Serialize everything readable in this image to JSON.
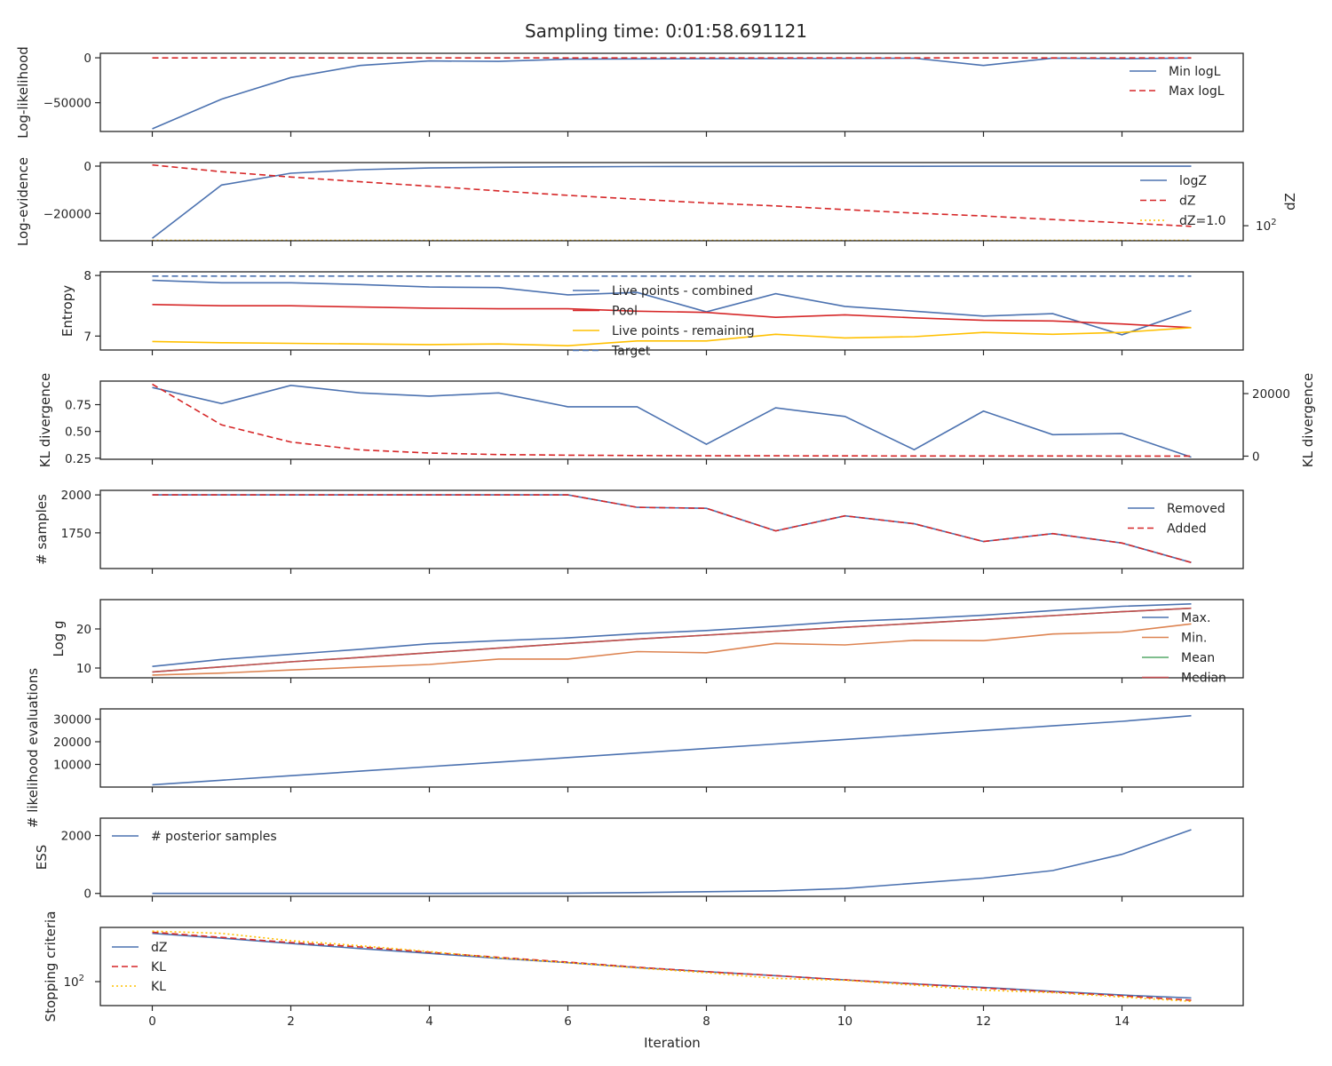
{
  "figure": {
    "title": "Sampling time: 0:01:58.691121",
    "xlabel": "Iteration",
    "xticks": [
      0,
      2,
      4,
      6,
      8,
      10,
      12,
      14
    ]
  },
  "colors": {
    "blue": "#4c72b0",
    "red": "#d62728",
    "yellow": "#ffc000",
    "orange": "#dd8452",
    "green": "#55a868",
    "darkred": "#c44e52",
    "axis": "#262626"
  },
  "chart_data": [
    {
      "type": "line",
      "ylabel": "Log-likelihood",
      "x": [
        0,
        1,
        2,
        3,
        4,
        5,
        6,
        7,
        8,
        9,
        10,
        11,
        12,
        13,
        14,
        15
      ],
      "ylim": [
        -82000,
        5000
      ],
      "yticks": [
        0,
        -50000
      ],
      "yticklabels": [
        "0",
        "−50000"
      ],
      "legend": "right",
      "series": [
        {
          "name": "Min logL",
          "color": "blue",
          "dash": "solid",
          "values": [
            -79000,
            -46000,
            -22000,
            -8500,
            -3500,
            -4000,
            -1500,
            -1200,
            -1000,
            -800,
            -600,
            -400,
            -8500,
            -300,
            -1000,
            -200
          ]
        },
        {
          "name": "Max logL",
          "color": "red",
          "dash": "dashed",
          "values": [
            -100,
            -100,
            -100,
            -100,
            -100,
            -100,
            -100,
            -100,
            -100,
            -100,
            -100,
            -100,
            -100,
            -100,
            -100,
            -100
          ]
        }
      ]
    },
    {
      "type": "line",
      "ylabel": "Log-evidence",
      "right_ylabel": "dZ",
      "right_ticks": [
        {
          "label": "10",
          "sup": "2",
          "value": 100
        }
      ],
      "x": [
        0,
        1,
        2,
        3,
        4,
        5,
        6,
        7,
        8,
        9,
        10,
        11,
        12,
        13,
        14,
        15
      ],
      "ylim": [
        -31500,
        1500
      ],
      "yticks": [
        0,
        -20000
      ],
      "yticklabels": [
        "0",
        "−20000"
      ],
      "right_scale": "log",
      "right_ylim": [
        32,
        12000
      ],
      "legend": "right",
      "series": [
        {
          "name": "logZ",
          "color": "blue",
          "dash": "solid",
          "axis": "left",
          "values": [
            -30500,
            -8000,
            -3000,
            -1500,
            -800,
            -500,
            -300,
            -200,
            -150,
            -100,
            -80,
            -60,
            -50,
            -40,
            -30,
            -20
          ]
        },
        {
          "name": "dZ",
          "color": "red",
          "dash": "dashed",
          "axis": "right",
          "values": [
            10000,
            6000,
            4000,
            2800,
            2000,
            1400,
            1000,
            750,
            560,
            450,
            340,
            260,
            210,
            160,
            125,
            95
          ]
        },
        {
          "name": "dZ=1.0",
          "color": "yellow",
          "dash": "dotted",
          "axis": "right",
          "values": [
            33,
            33,
            33,
            33,
            33,
            33,
            33,
            33,
            33,
            33,
            33,
            33,
            33,
            33,
            33,
            33
          ]
        }
      ]
    },
    {
      "type": "line",
      "ylabel": "Entropy",
      "x": [
        0,
        1,
        2,
        3,
        4,
        5,
        6,
        7,
        8,
        9,
        10,
        11,
        12,
        13,
        14,
        15
      ],
      "ylim": [
        6.77,
        8.06
      ],
      "yticks": [
        8,
        7
      ],
      "yticklabels": [
        "8",
        "7"
      ],
      "legend": "center",
      "series": [
        {
          "name": "Live points - combined",
          "color": "blue",
          "dash": "solid",
          "values": [
            7.92,
            7.88,
            7.88,
            7.85,
            7.81,
            7.8,
            7.68,
            7.72,
            7.4,
            7.7,
            7.49,
            7.41,
            7.33,
            7.37,
            7.02,
            7.42
          ]
        },
        {
          "name": "Pool",
          "color": "red",
          "dash": "solid",
          "values": [
            7.52,
            7.5,
            7.5,
            7.48,
            7.46,
            7.45,
            7.45,
            7.41,
            7.39,
            7.31,
            7.35,
            7.3,
            7.26,
            7.25,
            7.2,
            7.14
          ]
        },
        {
          "name": "Live points - remaining",
          "color": "yellow",
          "dash": "solid",
          "values": [
            6.91,
            6.89,
            6.88,
            6.87,
            6.86,
            6.87,
            6.84,
            6.92,
            6.92,
            7.03,
            6.97,
            6.99,
            7.06,
            7.03,
            7.06,
            7.14
          ]
        },
        {
          "name": "Target",
          "color": "blue",
          "dash": "dashed",
          "values": [
            7.99,
            7.99,
            7.99,
            7.99,
            7.99,
            7.99,
            7.99,
            7.99,
            7.99,
            7.99,
            7.99,
            7.99,
            7.99,
            7.99,
            7.99,
            7.99
          ]
        }
      ]
    },
    {
      "type": "line",
      "ylabel": "KL divergence",
      "right_ylabel": "KL divergence",
      "x": [
        0,
        1,
        2,
        3,
        4,
        5,
        6,
        7,
        8,
        9,
        10,
        11,
        12,
        13,
        14,
        15
      ],
      "ylim": [
        0.24,
        0.97
      ],
      "yticks": [
        0.75,
        0.5,
        0.25
      ],
      "yticklabels": [
        "0.75",
        "0.50",
        "0.25"
      ],
      "right_ylim": [
        -1000,
        24000
      ],
      "right_yticks": [
        20000,
        0
      ],
      "right_yticklabels": [
        "20000",
        "0"
      ],
      "series": [
        {
          "name": "",
          "color": "blue",
          "dash": "solid",
          "axis": "left",
          "values": [
            0.91,
            0.76,
            0.93,
            0.86,
            0.83,
            0.86,
            0.73,
            0.73,
            0.38,
            0.72,
            0.64,
            0.33,
            0.69,
            0.47,
            0.48,
            0.26
          ]
        },
        {
          "name": "",
          "color": "red",
          "dash": "dashed",
          "axis": "right",
          "values": [
            23000,
            10000,
            4500,
            2000,
            1000,
            500,
            300,
            200,
            120,
            100,
            80,
            60,
            50,
            40,
            30,
            20
          ]
        }
      ]
    },
    {
      "type": "line",
      "ylabel": "# samples",
      "x": [
        0,
        1,
        2,
        3,
        4,
        5,
        6,
        7,
        8,
        9,
        10,
        11,
        12,
        13,
        14,
        15
      ],
      "ylim": [
        1515,
        2030
      ],
      "yticks": [
        2000,
        1750
      ],
      "yticklabels": [
        "2000",
        "1750"
      ],
      "legend": "right",
      "series": [
        {
          "name": "Removed",
          "color": "blue",
          "dash": "solid",
          "values": [
            2000,
            2000,
            2000,
            2000,
            2000,
            2000,
            2000,
            1918,
            1912,
            1763,
            1862,
            1810,
            1693,
            1745,
            1683,
            1555
          ]
        },
        {
          "name": "Added",
          "color": "red",
          "dash": "dashed",
          "values": [
            2000,
            2000,
            2000,
            2000,
            2000,
            2000,
            2000,
            1918,
            1912,
            1763,
            1862,
            1810,
            1693,
            1745,
            1683,
            1555
          ]
        }
      ]
    },
    {
      "type": "line",
      "ylabel": "Log g",
      "x": [
        0,
        1,
        2,
        3,
        4,
        5,
        6,
        7,
        8,
        9,
        10,
        11,
        12,
        13,
        14,
        15
      ],
      "ylim": [
        7.5,
        27.5
      ],
      "yticks": [
        20,
        10
      ],
      "yticklabels": [
        "20",
        "10"
      ],
      "legend": "right",
      "series": [
        {
          "name": "Max.",
          "color": "blue",
          "dash": "solid",
          "values": [
            10.4,
            12.2,
            13.5,
            14.8,
            16.2,
            17.0,
            17.7,
            18.8,
            19.6,
            20.7,
            21.9,
            22.6,
            23.5,
            24.7,
            25.8,
            26.4
          ]
        },
        {
          "name": "Min.",
          "color": "orange",
          "dash": "solid",
          "values": [
            8.2,
            8.7,
            9.5,
            10.2,
            10.9,
            12.3,
            12.3,
            14.2,
            13.9,
            16.3,
            15.9,
            17.1,
            17.0,
            18.7,
            19.2,
            21.3
          ]
        },
        {
          "name": "Mean",
          "color": "green",
          "dash": "solid",
          "values": [
            9.0,
            10.3,
            11.6,
            12.7,
            13.9,
            15.1,
            16.3,
            17.4,
            18.4,
            19.4,
            20.4,
            21.4,
            22.4,
            23.4,
            24.4,
            25.3
          ]
        },
        {
          "name": "Median",
          "color": "darkred",
          "dash": "solid",
          "values": [
            9.0,
            10.3,
            11.6,
            12.7,
            13.9,
            15.1,
            16.3,
            17.4,
            18.4,
            19.4,
            20.4,
            21.4,
            22.4,
            23.4,
            24.4,
            25.3
          ]
        }
      ]
    },
    {
      "type": "line",
      "ylabel": "# likelihood evaluations",
      "x": [
        0,
        1,
        2,
        3,
        4,
        5,
        6,
        7,
        8,
        9,
        10,
        11,
        12,
        13,
        14,
        15
      ],
      "ylim": [
        0,
        34500
      ],
      "yticks": [
        30000,
        20000,
        10000
      ],
      "yticklabels": [
        "30000",
        "20000",
        "10000"
      ],
      "series": [
        {
          "name": "",
          "color": "blue",
          "dash": "solid",
          "values": [
            1000,
            3000,
            5000,
            7000,
            9000,
            11000,
            13000,
            15000,
            17000,
            19000,
            21000,
            23000,
            25000,
            27000,
            29000,
            31500
          ]
        }
      ]
    },
    {
      "type": "line",
      "ylabel": "ESS",
      "x": [
        0,
        1,
        2,
        3,
        4,
        5,
        6,
        7,
        8,
        9,
        10,
        11,
        12,
        13,
        14,
        15
      ],
      "ylim": [
        -100,
        2600
      ],
      "yticks": [
        2000,
        0
      ],
      "yticklabels": [
        "2000",
        "0"
      ],
      "legend": "left",
      "series": [
        {
          "name": "# posterior samples",
          "color": "blue",
          "dash": "solid",
          "values": [
            0,
            0,
            0,
            0,
            0,
            5,
            10,
            30,
            60,
            90,
            170,
            350,
            530,
            790,
            1350,
            2200
          ]
        }
      ]
    },
    {
      "type": "line",
      "ylabel": "Stopping criteria",
      "x": [
        0,
        1,
        2,
        3,
        4,
        5,
        6,
        7,
        8,
        9,
        10,
        11,
        12,
        13,
        14,
        15
      ],
      "ylim": [
        26,
        2100
      ],
      "scale": "log",
      "yticks": [
        100
      ],
      "yticklabels": [
        "10"
      ],
      "yticksup": [
        "2"
      ],
      "legend": "left",
      "series": [
        {
          "name": "dZ",
          "color": "blue",
          "dash": "solid",
          "values": [
            1500,
            1150,
            850,
            640,
            490,
            370,
            290,
            220,
            175,
            140,
            110,
            88,
            72,
            58,
            47,
            40
          ]
        },
        {
          "name": "KL",
          "color": "red",
          "dash": "dashed",
          "values": [
            1600,
            1200,
            900,
            700,
            520,
            390,
            300,
            225,
            175,
            140,
            110,
            88,
            70,
            56,
            45,
            35
          ]
        },
        {
          "name": "KL",
          "color": "yellow",
          "dash": "dotted",
          "values": [
            1700,
            1500,
            1000,
            750,
            540,
            380,
            290,
            215,
            165,
            120,
            108,
            82,
            62,
            54,
            42,
            33
          ]
        }
      ]
    }
  ]
}
